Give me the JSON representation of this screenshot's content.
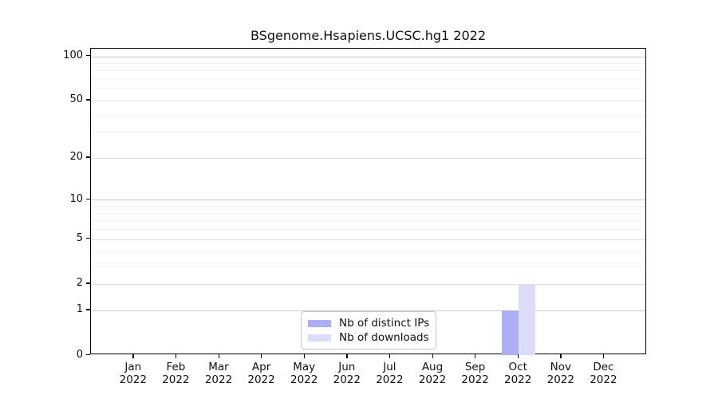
{
  "chart_data": {
    "type": "bar",
    "title": "BSgenome.Hsapiens.UCSC.hg1 2022",
    "categories": [
      "Jan",
      "Feb",
      "Mar",
      "Apr",
      "May",
      "Jun",
      "Jul",
      "Aug",
      "Sep",
      "Oct",
      "Nov",
      "Dec"
    ],
    "category_year": "2022",
    "series": [
      {
        "name": "Nb of distinct IPs",
        "color": "#acaef6",
        "values": [
          0,
          0,
          0,
          0,
          0,
          0,
          0,
          0,
          0,
          1,
          0,
          0
        ]
      },
      {
        "name": "Nb of downloads",
        "color": "#dcdef8",
        "values": [
          0,
          0,
          0,
          0,
          0,
          0,
          0,
          0,
          0,
          2,
          0,
          0
        ]
      }
    ],
    "yscale": "log1p",
    "ylim": [
      0,
      112.5
    ],
    "yticks": [
      0,
      1,
      2,
      5,
      10,
      20,
      50,
      100
    ],
    "grid_decade_values": [
      1,
      10,
      100
    ],
    "grid_labeled_values": [
      2,
      5,
      20,
      50
    ],
    "grid_minor_values": [
      3,
      4,
      6,
      7,
      8,
      9,
      30,
      40,
      60,
      70,
      80,
      90
    ],
    "grid": true,
    "legend_position": "bottom-center"
  }
}
